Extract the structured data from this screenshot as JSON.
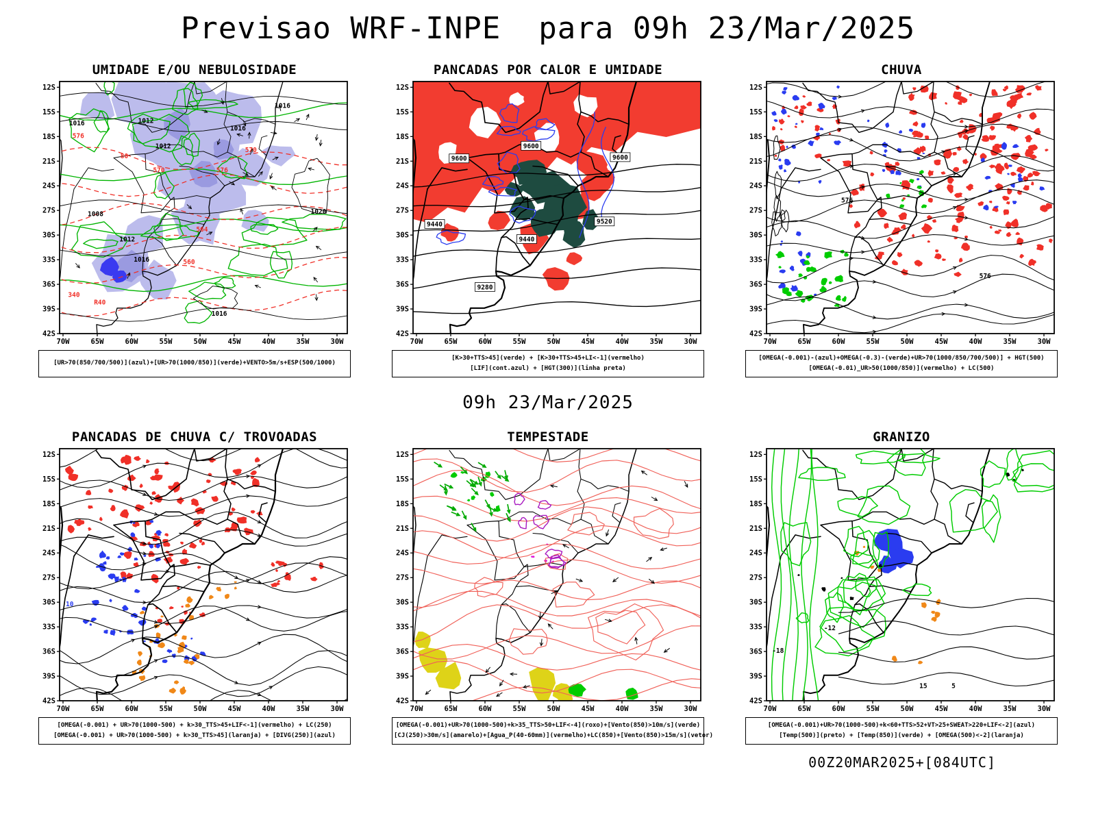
{
  "header": {
    "title": "Previsao WRF-INPE  para 09h 23/Mar/2025"
  },
  "mid_label": "09h 23/Mar/2025",
  "footer": "00Z20MAR2025+[084UTC]",
  "axis": {
    "lat_ticks": [
      "12S",
      "15S",
      "18S",
      "21S",
      "24S",
      "27S",
      "30S",
      "33S",
      "36S",
      "39S",
      "42S"
    ],
    "lon_ticks": [
      "70W",
      "65W",
      "60W",
      "55W",
      "50W",
      "45W",
      "40W",
      "35W",
      "30W"
    ]
  },
  "palette": {
    "black": "#000000",
    "green": "#00b400",
    "bright_green": "#00cc00",
    "red": "#f03028",
    "fill_red": "#f23c30",
    "blue": "#2a3cf0",
    "deep_blue": "#3a3af0",
    "lavender": "#bcbcec",
    "lavender_dark": "#9a9ae0",
    "dark_teal": "#1e4b40",
    "orange": "#f08818",
    "purple": "#a818c0",
    "magenta": "#e018d8",
    "yellow": "#ded318",
    "salmon": "#f06058"
  },
  "chart_data": {
    "type": "contour_map_grid",
    "model": "WRF-INPE",
    "valid_time": "09h 23/Mar/2025",
    "run_label": "00Z20MAR2025+[084UTC]",
    "lat_range": [
      "12S",
      "42S"
    ],
    "lon_range": [
      "70W",
      "30W"
    ],
    "panels": [
      {
        "id": "umidade",
        "title": "UMIDADE E/OU NEBULOSIDADE",
        "caption_lines": [
          "[UR>70(850/700/500)](azul)+[UR>70(1000/850)](verde)+VENTO>5m/s+ESP(500/1000)"
        ],
        "contour_labels": [
          {
            "text": "1016",
            "color": "black"
          },
          {
            "text": "1012",
            "color": "black"
          },
          {
            "text": "1012",
            "color": "black"
          },
          {
            "text": "1016",
            "color": "black"
          },
          {
            "text": "1016",
            "color": "black"
          },
          {
            "text": "1008",
            "color": "black"
          },
          {
            "text": "1016",
            "color": "black"
          },
          {
            "text": "1020",
            "color": "black"
          },
          {
            "text": "1012",
            "color": "black"
          },
          {
            "text": "1016",
            "color": "black"
          },
          {
            "text": "576",
            "color": "red"
          },
          {
            "text": "80",
            "color": "red"
          },
          {
            "text": "570",
            "color": "red"
          },
          {
            "text": "570",
            "color": "red"
          },
          {
            "text": "576",
            "color": "red"
          },
          {
            "text": "564",
            "color": "red"
          },
          {
            "text": "560",
            "color": "red"
          },
          {
            "text": "340",
            "color": "red"
          },
          {
            "text": "R40",
            "color": "red"
          }
        ]
      },
      {
        "id": "pancadas-calor",
        "title": "PANCADAS POR CALOR E UMIDADE",
        "caption_lines": [
          "[K>30+TTS>45](verde) + [K>30+TTS>45+LI<-1](vermelho)",
          "[LIF](cont.azul) + [HGT(300)](linha preta)"
        ],
        "contour_labels": [
          {
            "text": "9600",
            "color": "black",
            "boxed": true
          },
          {
            "text": "9600",
            "color": "black",
            "boxed": true
          },
          {
            "text": "9600",
            "color": "black",
            "boxed": true
          },
          {
            "text": "9520",
            "color": "black",
            "boxed": true
          },
          {
            "text": "9440",
            "color": "black",
            "boxed": true
          },
          {
            "text": "9440",
            "color": "black",
            "boxed": true
          },
          {
            "text": "9280",
            "color": "black",
            "boxed": true
          }
        ]
      },
      {
        "id": "chuva",
        "title": "CHUVA",
        "caption_lines": [
          "[OMEGA(-0.001)-(azul)+OMEGA(-0.3)-(verde)+UR>70(1000/850/700/500)] + HGT(500)",
          "[OMEGA(-0.01)_UR>50(1000/850)](vermelho) + LC(500)"
        ],
        "contour_labels": [
          {
            "text": "576",
            "color": "black"
          },
          {
            "text": "576",
            "color": "black"
          }
        ]
      },
      {
        "id": "trovoadas",
        "title": "PANCADAS DE CHUVA C/ TROVOADAS",
        "caption_lines": [
          "[OMEGA(-0.001) + UR>70(1000-500) + k>30_TTS>45+LIF<-1](vermelho) + LC(250)",
          "[OMEGA(-0.001) + UR>70(1000-500) + k>30_TTS>45](laranja) + [DIVG(250)](azul)"
        ],
        "contour_labels": [
          {
            "text": "10",
            "color": "blue"
          }
        ]
      },
      {
        "id": "tempestade",
        "title": "TEMPESTADE",
        "caption_lines": [
          "[OMEGA(-0.001)+UR>70(1000-500)+k>35_TTS>50+LIF<-4](roxo)+[Vento(850)>10m/s](verde)",
          "[CJ(250)>30m/s](amarelo)+[Agua_P(40-60mm)](vermelho)+LC(850)+[Vento(850)>15m/s](vetor)"
        ],
        "contour_labels": []
      },
      {
        "id": "granizo",
        "title": "GRANIZO",
        "caption_lines": [
          "[OMEGA(-0.001)+UR>70(1000-500)+k<60+TTS>52+VT>25+SWEAT>220+LIF<-2](azul)",
          "[Temp(500)](preto) + [Temp(850)](verde) + [OMEGA(500)<-2](laranja)"
        ],
        "contour_labels": [
          {
            "text": "-12",
            "color": "black"
          },
          {
            "text": "-18",
            "color": "black"
          },
          {
            "text": "15",
            "color": "black"
          },
          {
            "text": "5",
            "color": "black"
          }
        ]
      }
    ]
  }
}
